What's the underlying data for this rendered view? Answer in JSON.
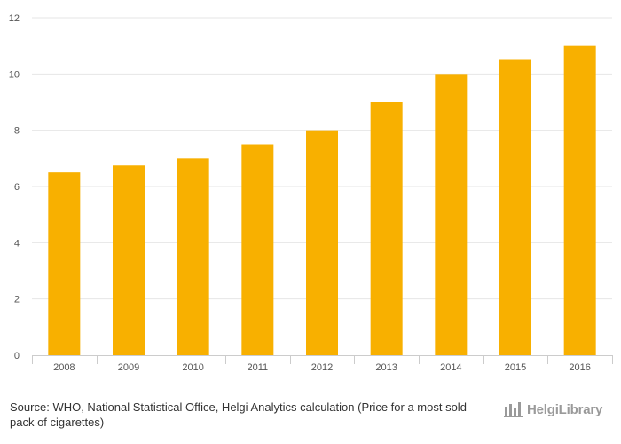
{
  "chart_data": {
    "type": "bar",
    "title": "",
    "xlabel": "",
    "ylabel": "",
    "categories": [
      "2008",
      "2009",
      "2010",
      "2011",
      "2012",
      "2013",
      "2014",
      "2015",
      "2016"
    ],
    "values": [
      6.5,
      6.75,
      7.0,
      7.5,
      8.0,
      9.0,
      10.0,
      10.5,
      11.0
    ],
    "ylim": [
      0,
      12
    ],
    "yticks": [
      "0",
      "2",
      "4",
      "6",
      "8",
      "10",
      "12"
    ],
    "grid": true,
    "bar_color": "#f8b000"
  },
  "footer": {
    "source_prefix": "Source:",
    "source_text": "WHO, National Statistical Office, Helgi Analytics calculation (Price for a most sold pack of cigarettes)",
    "logo_text": "HelgiLibrary"
  }
}
